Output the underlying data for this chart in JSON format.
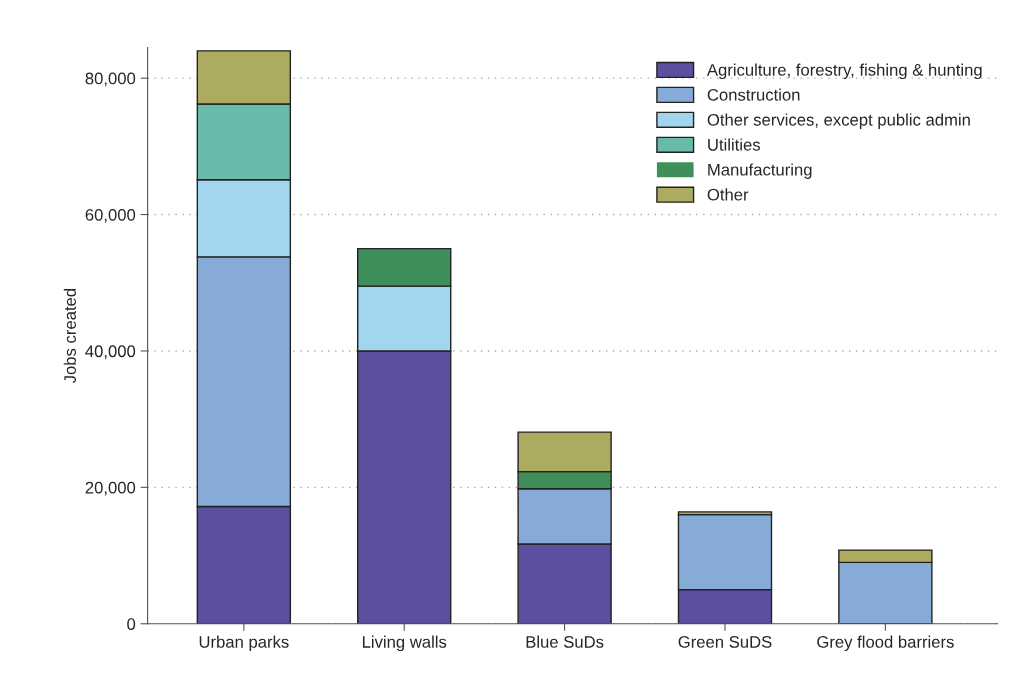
{
  "chart_data": {
    "type": "bar",
    "stacked": true,
    "ylabel": "Jobs created",
    "categories": [
      "Urban parks",
      "Living walls",
      "Blue SuDs",
      "Green SuDS",
      "Grey flood barriers"
    ],
    "series": [
      {
        "name": "Agriculture, forestry, fishing & hunting",
        "color": "#5b4fa0",
        "values": [
          17200,
          40000,
          11700,
          5000,
          0
        ]
      },
      {
        "name": "Construction",
        "color": "#86abd6",
        "values": [
          36600,
          0,
          8100,
          11000,
          9000
        ]
      },
      {
        "name": "Other services, except public admin",
        "color": "#a2d6f0",
        "values": [
          11300,
          9500,
          0,
          0,
          0
        ]
      },
      {
        "name": "Utilities",
        "color": "#68bbaa",
        "values": [
          11100,
          0,
          0,
          0,
          0
        ]
      },
      {
        "name": "Manufacturing",
        "color": "#3f8f5b",
        "values": [
          0,
          5500,
          2500,
          0,
          0
        ]
      },
      {
        "name": "Other",
        "color": "#acab5f",
        "values": [
          7800,
          0,
          5800,
          400,
          1800
        ]
      }
    ],
    "ylim": [
      0,
      84500
    ],
    "yticks": [
      {
        "value": 0,
        "label": "0"
      },
      {
        "value": 20000,
        "label": "20,000"
      },
      {
        "value": 40000,
        "label": "40,000"
      },
      {
        "value": 60000,
        "label": "60,000"
      },
      {
        "value": 80000,
        "label": "80,000"
      }
    ],
    "grid": "y",
    "legend": "top right"
  }
}
